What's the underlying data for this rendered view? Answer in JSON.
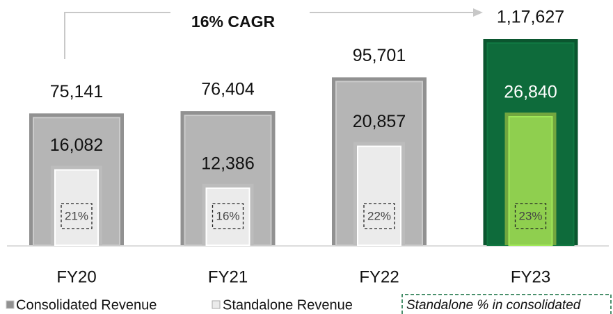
{
  "chart_data": {
    "type": "bar",
    "annotation": "16% CAGR",
    "categories": [
      "FY20",
      "FY21",
      "FY22",
      "FY23"
    ],
    "series": [
      {
        "name": "Consolidated Revenue",
        "color": "#b5b5b5",
        "colors": [
          "#b5b5b5",
          "#b5b5b5",
          "#b5b5b5",
          "#0e6b3b"
        ],
        "values": [
          75141,
          76404,
          95701,
          117627
        ],
        "value_labels": [
          "75,141",
          "76,404",
          "95,701",
          "1,17,627"
        ]
      },
      {
        "name": "Standalone Revenue",
        "color": "#ebebeb",
        "colors": [
          "#ebebeb",
          "#ebebeb",
          "#ebebeb",
          "#8fcf4f"
        ],
        "values": [
          16082,
          12386,
          20857,
          26840
        ],
        "value_labels": [
          "16,082",
          "12,386",
          "20,857",
          "26,840"
        ]
      },
      {
        "name": "Standalone % in consolidated",
        "values": [
          21,
          16,
          22,
          23
        ],
        "value_labels": [
          "21%",
          "16%",
          "22%",
          "23%"
        ]
      }
    ]
  }
}
